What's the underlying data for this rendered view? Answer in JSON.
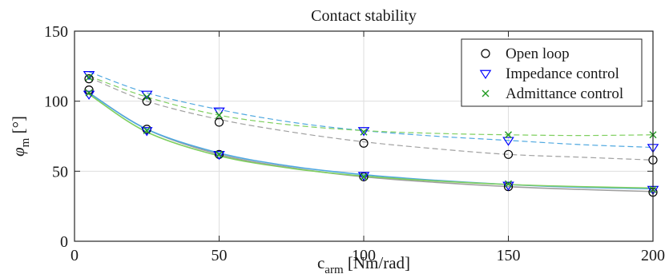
{
  "chart_data": {
    "type": "scatter",
    "title": "Contact stability",
    "xlabel_main": "c",
    "xlabel_sub": "arm",
    "xlabel_unit": " [Nm/rad]",
    "ylabel_main": "φ",
    "ylabel_sub": "m",
    "ylabel_unit": " [°]",
    "xlim": [
      0,
      200
    ],
    "ylim": [
      0,
      150
    ],
    "xticks": [
      0,
      50,
      100,
      150,
      200
    ],
    "yticks": [
      0,
      50,
      100,
      150
    ],
    "grid": true,
    "legend_position": "top-right",
    "series": [
      {
        "name": "Open loop",
        "marker": "circle",
        "color": "#000000",
        "fit_color": "#a0a0a0",
        "points": [
          {
            "x": 5,
            "y": 116
          },
          {
            "x": 25,
            "y": 100
          },
          {
            "x": 50,
            "y": 85
          },
          {
            "x": 100,
            "y": 70
          },
          {
            "x": 150,
            "y": 62
          },
          {
            "x": 200,
            "y": 58
          },
          {
            "x": 5,
            "y": 108
          },
          {
            "x": 25,
            "y": 80
          },
          {
            "x": 50,
            "y": 62
          },
          {
            "x": 100,
            "y": 46
          },
          {
            "x": 150,
            "y": 39
          },
          {
            "x": 200,
            "y": 35
          }
        ],
        "upper_fit": [
          {
            "x": 5,
            "y": 117
          },
          {
            "x": 25,
            "y": 100
          },
          {
            "x": 50,
            "y": 87
          },
          {
            "x": 75,
            "y": 78
          },
          {
            "x": 100,
            "y": 71
          },
          {
            "x": 125,
            "y": 66
          },
          {
            "x": 150,
            "y": 62
          },
          {
            "x": 175,
            "y": 60
          },
          {
            "x": 200,
            "y": 58
          }
        ],
        "lower_fit": [
          {
            "x": 5,
            "y": 106
          },
          {
            "x": 25,
            "y": 80
          },
          {
            "x": 50,
            "y": 62
          },
          {
            "x": 75,
            "y": 52.5
          },
          {
            "x": 100,
            "y": 46
          },
          {
            "x": 125,
            "y": 42
          },
          {
            "x": 150,
            "y": 39
          },
          {
            "x": 175,
            "y": 37
          },
          {
            "x": 200,
            "y": 35.5
          }
        ]
      },
      {
        "name": "Impedance control",
        "marker": "triangle-down",
        "color": "#0000ff",
        "fit_color": "#4fa8e0",
        "points": [
          {
            "x": 5,
            "y": 119
          },
          {
            "x": 25,
            "y": 105
          },
          {
            "x": 50,
            "y": 93
          },
          {
            "x": 100,
            "y": 79
          },
          {
            "x": 150,
            "y": 72
          },
          {
            "x": 200,
            "y": 67
          },
          {
            "x": 5,
            "y": 105
          },
          {
            "x": 25,
            "y": 79
          },
          {
            "x": 50,
            "y": 62
          },
          {
            "x": 100,
            "y": 47
          },
          {
            "x": 150,
            "y": 40
          },
          {
            "x": 200,
            "y": 37
          }
        ],
        "upper_fit": [
          {
            "x": 5,
            "y": 121
          },
          {
            "x": 25,
            "y": 106
          },
          {
            "x": 50,
            "y": 94
          },
          {
            "x": 75,
            "y": 85
          },
          {
            "x": 100,
            "y": 79
          },
          {
            "x": 125,
            "y": 75
          },
          {
            "x": 150,
            "y": 72
          },
          {
            "x": 175,
            "y": 69
          },
          {
            "x": 200,
            "y": 67
          }
        ],
        "lower_fit": [
          {
            "x": 5,
            "y": 106
          },
          {
            "x": 25,
            "y": 80
          },
          {
            "x": 50,
            "y": 63
          },
          {
            "x": 75,
            "y": 53.5
          },
          {
            "x": 100,
            "y": 47.5
          },
          {
            "x": 125,
            "y": 43.5
          },
          {
            "x": 150,
            "y": 40.5
          },
          {
            "x": 175,
            "y": 38.5
          },
          {
            "x": 200,
            "y": 37.5
          }
        ]
      },
      {
        "name": "Admittance control",
        "marker": "x",
        "color": "#1f9a1f",
        "fit_color": "#7fcf5f",
        "points": [
          {
            "x": 5,
            "y": 117
          },
          {
            "x": 25,
            "y": 103
          },
          {
            "x": 50,
            "y": 90
          },
          {
            "x": 100,
            "y": 78
          },
          {
            "x": 150,
            "y": 76
          },
          {
            "x": 200,
            "y": 76
          },
          {
            "x": 5,
            "y": 106
          },
          {
            "x": 25,
            "y": 79
          },
          {
            "x": 50,
            "y": 62
          },
          {
            "x": 100,
            "y": 46
          },
          {
            "x": 150,
            "y": 41
          },
          {
            "x": 200,
            "y": 37
          }
        ],
        "upper_fit": [
          {
            "x": 5,
            "y": 118
          },
          {
            "x": 25,
            "y": 103
          },
          {
            "x": 50,
            "y": 90
          },
          {
            "x": 75,
            "y": 83
          },
          {
            "x": 100,
            "y": 79
          },
          {
            "x": 125,
            "y": 77
          },
          {
            "x": 150,
            "y": 76
          },
          {
            "x": 175,
            "y": 75.5
          },
          {
            "x": 200,
            "y": 76
          }
        ],
        "lower_fit": [
          {
            "x": 5,
            "y": 105
          },
          {
            "x": 25,
            "y": 78
          },
          {
            "x": 50,
            "y": 61
          },
          {
            "x": 75,
            "y": 52
          },
          {
            "x": 100,
            "y": 46.5
          },
          {
            "x": 125,
            "y": 43
          },
          {
            "x": 150,
            "y": 40.5
          },
          {
            "x": 175,
            "y": 39
          },
          {
            "x": 200,
            "y": 38
          }
        ]
      }
    ]
  }
}
